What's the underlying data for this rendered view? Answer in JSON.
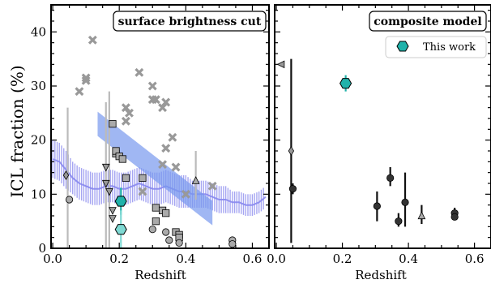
{
  "chart_data": {
    "type": "scatter",
    "ylabel": "ICL fraction (%)",
    "panels": [
      {
        "title": "surface brightness cut",
        "xlabel": "Redshift",
        "xlim": [
          -0.005,
          0.65
        ],
        "ylim": [
          0,
          45
        ],
        "xticks": [
          "0.0",
          "0.2",
          "0.4",
          "0.6"
        ],
        "xtick_values": [
          0.0,
          0.2,
          0.4,
          0.6
        ],
        "yticks": [
          "0",
          "10",
          "20",
          "30",
          "40"
        ],
        "ytick_values": [
          0,
          10,
          20,
          30,
          40
        ],
        "literature_points": [
          {
            "marker": "cross",
            "color": "#999999",
            "points": [
              [
                0.08,
                29.0
              ],
              [
                0.12,
                38.5
              ],
              [
                0.1,
                31.0
              ],
              [
                0.1,
                31.5
              ],
              [
                0.22,
                23.5
              ],
              [
                0.23,
                25.0
              ],
              [
                0.22,
                26.0
              ],
              [
                0.26,
                32.5
              ],
              [
                0.3,
                30.0
              ],
              [
                0.31,
                27.5
              ],
              [
                0.33,
                26.0
              ],
              [
                0.3,
                27.5
              ],
              [
                0.34,
                27.0
              ],
              [
                0.34,
                18.5
              ],
              [
                0.36,
                20.5
              ],
              [
                0.33,
                15.5
              ],
              [
                0.37,
                15.0
              ],
              [
                0.27,
                10.5
              ],
              [
                0.4,
                10.0
              ],
              [
                0.48,
                11.5
              ]
            ]
          },
          {
            "marker": "square",
            "color": "#aaaaaa",
            "points": [
              [
                0.18,
                23.0
              ],
              [
                0.19,
                17.5
              ],
              [
                0.19,
                18.0
              ],
              [
                0.2,
                17.0
              ],
              [
                0.21,
                16.5
              ],
              [
                0.22,
                13.0
              ],
              [
                0.27,
                13.0
              ],
              [
                0.31,
                7.5
              ],
              [
                0.31,
                5.0
              ],
              [
                0.33,
                7.0
              ],
              [
                0.34,
                6.5
              ],
              [
                0.37,
                3.0
              ],
              [
                0.38,
                2.5
              ],
              [
                0.38,
                2.0
              ]
            ]
          },
          {
            "marker": "triangle-down",
            "color": "#999999",
            "points": [
              [
                0.16,
                15.0
              ],
              [
                0.16,
                12.0
              ],
              [
                0.17,
                10.5
              ],
              [
                0.18,
                7.0
              ],
              [
                0.18,
                5.5
              ]
            ]
          },
          {
            "marker": "triangle-up",
            "color": "#aaaaaa",
            "points": [
              [
                0.43,
                12.5
              ]
            ]
          },
          {
            "marker": "diamond",
            "color": "#999999",
            "points": [
              [
                0.04,
                13.5
              ]
            ]
          },
          {
            "marker": "circle",
            "color": "#aaaaaa",
            "points": [
              [
                0.05,
                9.0
              ],
              [
                0.3,
                3.5
              ],
              [
                0.34,
                3.0
              ],
              [
                0.35,
                1.5
              ],
              [
                0.38,
                1.0
              ],
              [
                0.54,
                1.5
              ],
              [
                0.54,
                0.8
              ]
            ]
          }
        ],
        "vertical_error_bars": [
          {
            "x": 0.045,
            "y": 13.5,
            "ylo": 0.0,
            "yhi": 26.0
          },
          {
            "x": 0.16,
            "y": 12.0,
            "ylo": 0.0,
            "yhi": 27.0
          },
          {
            "x": 0.17,
            "y": 10.5,
            "ylo": 0.0,
            "yhi": 29.0
          },
          {
            "x": 0.43,
            "y": 12.5,
            "ylo": 9.0,
            "yhi": 18.0
          }
        ],
        "simulation_band": {
          "color": "#8888ee",
          "x": [
            0.0,
            0.02,
            0.04,
            0.06,
            0.08,
            0.1,
            0.12,
            0.14,
            0.16,
            0.18,
            0.2,
            0.22,
            0.24,
            0.26,
            0.28,
            0.3,
            0.32,
            0.34,
            0.36,
            0.38,
            0.4,
            0.42,
            0.44,
            0.46,
            0.48,
            0.5,
            0.52,
            0.54,
            0.56,
            0.58,
            0.6,
            0.62,
            0.64
          ],
          "median": [
            16.5,
            16.0,
            14.5,
            13.0,
            12.0,
            11.5,
            11.0,
            11.0,
            11.5,
            11.5,
            11.0,
            11.0,
            11.5,
            12.0,
            11.5,
            11.0,
            11.0,
            11.5,
            11.0,
            10.5,
            10.5,
            10.0,
            10.0,
            10.0,
            9.5,
            9.0,
            9.0,
            8.5,
            8.5,
            8.0,
            8.0,
            8.5,
            9.5
          ],
          "err": [
            3.5,
            3.5,
            3.5,
            3.0,
            3.0,
            3.0,
            3.0,
            3.0,
            3.0,
            3.0,
            3.0,
            3.0,
            3.0,
            3.0,
            3.0,
            3.0,
            3.0,
            3.0,
            3.0,
            3.0,
            3.0,
            2.5,
            2.5,
            2.5,
            2.5,
            2.5,
            2.5,
            2.0,
            2.0,
            2.0,
            2.0,
            2.0,
            2.0
          ]
        },
        "trend_band": {
          "color": "#7799ee",
          "from": [
            0.135,
            23.0
          ],
          "to": [
            0.48,
            6.5
          ],
          "width": 4.5
        },
        "this_work": [
          {
            "x": 0.205,
            "y": 8.7,
            "err": 2.5,
            "color": "#20b2aa"
          },
          {
            "x": 0.205,
            "y": 3.5,
            "err": 3.5,
            "color": "#7fd9d3"
          }
        ]
      },
      {
        "title": "composite model",
        "xlabel": "Redshift",
        "xlim": [
          -0.005,
          0.65
        ],
        "ylim": [
          0,
          45
        ],
        "xticks": [
          "0.0",
          "0.2",
          "0.4",
          "0.6"
        ],
        "xtick_values": [
          0.0,
          0.2,
          0.4,
          0.6
        ],
        "legend": {
          "label": "This work",
          "position": "top-right"
        },
        "literature_points": [
          {
            "marker": "triangle-left",
            "color": "#999999",
            "points": [
              [
                0.015,
                34.0
              ]
            ]
          },
          {
            "marker": "diamond",
            "color": "#999999",
            "points": [
              [
                0.045,
                18.0
              ]
            ]
          },
          {
            "marker": "circle",
            "color": "#333333",
            "points": [
              [
                0.05,
                11.0
              ],
              [
                0.305,
                7.8
              ],
              [
                0.345,
                13.0
              ],
              [
                0.37,
                5.0
              ],
              [
                0.39,
                8.5
              ],
              [
                0.54,
                6.5
              ],
              [
                0.54,
                5.8
              ]
            ]
          },
          {
            "marker": "triangle-up",
            "color": "#aaaaaa",
            "points": [
              [
                0.44,
                6.0
              ]
            ]
          }
        ],
        "vertical_error_bars": [
          {
            "x": 0.045,
            "y": 18.0,
            "ylo": 1.0,
            "yhi": 35.0
          },
          {
            "x": 0.05,
            "y": 11.0,
            "ylo": 10.0,
            "yhi": 12.0
          },
          {
            "x": 0.305,
            "y": 7.8,
            "ylo": 5.0,
            "yhi": 10.5
          },
          {
            "x": 0.345,
            "y": 13.0,
            "ylo": 11.5,
            "yhi": 15.0
          },
          {
            "x": 0.37,
            "y": 5.0,
            "ylo": 4.0,
            "yhi": 6.5
          },
          {
            "x": 0.39,
            "y": 8.5,
            "ylo": 4.0,
            "yhi": 14.0
          },
          {
            "x": 0.44,
            "y": 6.0,
            "ylo": 4.5,
            "yhi": 8.0
          },
          {
            "x": 0.54,
            "y": 6.5,
            "ylo": 5.5,
            "yhi": 7.5
          }
        ],
        "this_work": [
          {
            "x": 0.21,
            "y": 30.5,
            "err": 1.5,
            "color": "#20b2aa"
          }
        ]
      }
    ]
  }
}
